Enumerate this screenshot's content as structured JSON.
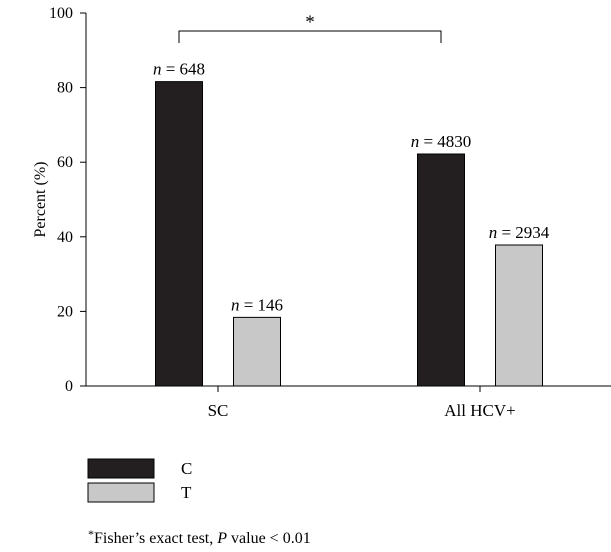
{
  "chart_data": {
    "type": "bar",
    "categories": [
      "SC",
      "All HCV+"
    ],
    "series": [
      {
        "name": "C",
        "values": [
          81.6,
          62.2
        ],
        "labels": [
          "n = 648",
          "n = 4830"
        ],
        "color": "#231f20"
      },
      {
        "name": "T",
        "values": [
          18.4,
          37.8
        ],
        "labels": [
          "n = 146",
          "n = 2934"
        ],
        "color": "#c8c8c8"
      }
    ],
    "xlabel": "",
    "ylabel": "Percent (%)",
    "ylim": [
      0,
      100
    ],
    "yticks": [
      "0",
      "20",
      "40",
      "60",
      "80",
      "100"
    ],
    "grid": false,
    "legend_position": "bottom-left",
    "significance": {
      "between": [
        "SC",
        "All HCV+"
      ],
      "series": "C",
      "marker": "*"
    },
    "footnote": {
      "marker": "*",
      "text_before": "Fisher’s exact test, ",
      "italic": "P",
      "text_after": " value < 0.01"
    }
  }
}
